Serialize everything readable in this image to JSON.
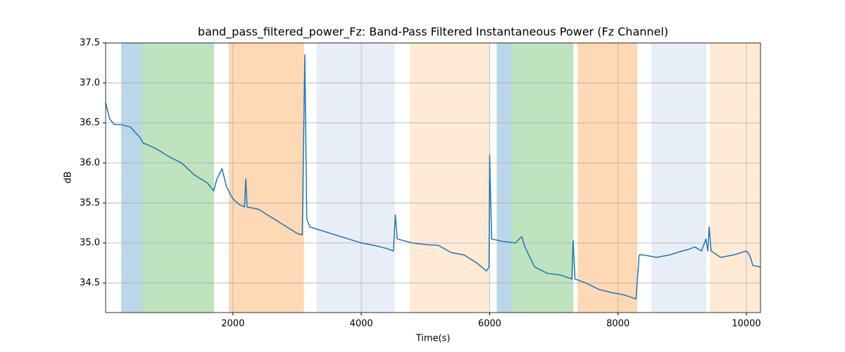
{
  "chart_data": {
    "type": "line",
    "title": "band_pass_filtered_power_Fz: Band-Pass Filtered Instantaneous Power (Fz Channel)",
    "x_label": "Time(s)",
    "y_label": "dB",
    "color": "#1f77b4",
    "grid": true,
    "xlim": [
      16,
      10220
    ],
    "ylim": [
      34.13,
      37.5
    ],
    "xticks": [
      2000,
      4000,
      6000,
      8000,
      10000
    ],
    "yticks": [
      34.5,
      {
        "value": 35,
        "label": "35.0"
      },
      35.5,
      {
        "value": 36,
        "label": "36.0"
      },
      36.5,
      {
        "value": 37,
        "label": "37.0"
      },
      37.5
    ],
    "spans": [
      {
        "start": 258,
        "end": 586,
        "color": "#1f77b4",
        "alpha": 0.3
      },
      {
        "start": 586,
        "end": 1704,
        "color": "#2ca02c",
        "alpha": 0.3
      },
      {
        "start": 1934,
        "end": 3107,
        "color": "#ff7f0e",
        "alpha": 0.3
      },
      {
        "start": 3304,
        "end": 4521,
        "color": "#aec7e8",
        "alpha": 0.3
      },
      {
        "start": 4751,
        "end": 6000,
        "color": "#ffbb78",
        "alpha": 0.3
      },
      {
        "start": 6110,
        "end": 6351,
        "color": "#1f77b4",
        "alpha": 0.3
      },
      {
        "start": 6351,
        "end": 7304,
        "color": "#2ca02c",
        "alpha": 0.3
      },
      {
        "start": 7370,
        "end": 8301,
        "color": "#ff7f0e",
        "alpha": 0.3
      },
      {
        "start": 8521,
        "end": 9375,
        "color": "#aec7e8",
        "alpha": 0.3
      },
      {
        "start": 9430,
        "end": 10220,
        "color": "#ffbb78",
        "alpha": 0.3
      }
    ],
    "x": [
      16,
      80,
      150,
      250,
      400,
      550,
      600,
      800,
      1000,
      1200,
      1400,
      1600,
      1700,
      1750,
      1830,
      1900,
      2000,
      2100,
      2180,
      2200,
      2220,
      2400,
      2600,
      2800,
      3000,
      3080,
      3120,
      3150,
      3200,
      3400,
      3600,
      3800,
      4000,
      4200,
      4400,
      4500,
      4530,
      4560,
      4800,
      5000,
      5200,
      5400,
      5600,
      5800,
      5950,
      5990,
      6000,
      6030,
      6200,
      6400,
      6500,
      6550,
      6700,
      6900,
      7100,
      7280,
      7300,
      7330,
      7500,
      7700,
      7900,
      8100,
      8280,
      8330,
      8400,
      8600,
      8800,
      9000,
      9100,
      9200,
      9300,
      9370,
      9400,
      9420,
      9450,
      9600,
      9800,
      10000,
      10050,
      10100,
      10220
    ],
    "values": [
      36.75,
      36.55,
      36.48,
      36.48,
      36.45,
      36.32,
      36.25,
      36.18,
      36.08,
      36.0,
      35.85,
      35.75,
      35.65,
      35.8,
      35.93,
      35.7,
      35.55,
      35.48,
      35.45,
      35.8,
      35.45,
      35.42,
      35.32,
      35.22,
      35.12,
      35.1,
      37.35,
      35.3,
      35.2,
      35.15,
      35.1,
      35.05,
      35.0,
      34.97,
      34.93,
      34.9,
      35.35,
      35.05,
      35.0,
      34.98,
      34.97,
      34.88,
      34.85,
      34.75,
      34.65,
      34.7,
      36.1,
      35.05,
      35.02,
      35.0,
      35.08,
      34.95,
      34.7,
      34.62,
      34.6,
      34.55,
      35.03,
      34.55,
      34.5,
      34.42,
      34.38,
      34.35,
      34.3,
      34.85,
      34.85,
      34.82,
      34.85,
      34.9,
      34.92,
      34.95,
      34.9,
      35.05,
      34.9,
      35.2,
      34.9,
      34.82,
      34.85,
      34.9,
      34.85,
      34.72,
      34.7
    ]
  }
}
